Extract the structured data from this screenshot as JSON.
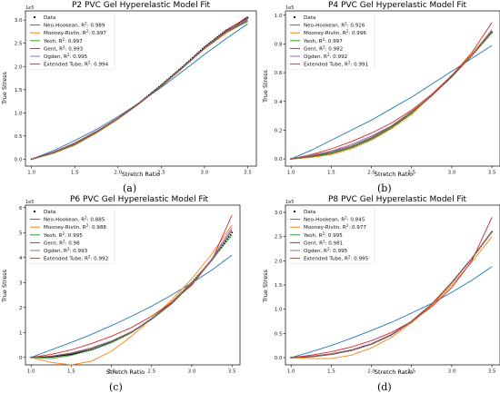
{
  "panel_labels": [
    "(a)",
    "(b)",
    "(c)",
    "(d)"
  ],
  "chart_data": [
    {
      "type": "line",
      "title": "P2 PVC Gel Hyperelastic Model Fit",
      "xlabel": "Stretch Ratio",
      "ylabel": "True Stress",
      "multiplier_label": "1e5",
      "xlim": [
        0.93,
        3.6
      ],
      "ylim": [
        -0.15,
        3.2
      ],
      "xticks": [
        "1.0",
        "1.5",
        "2.0",
        "2.5",
        "3.0",
        "3.5"
      ],
      "yticks": [
        "0.0",
        "0.5",
        "1.0",
        "1.5",
        "2.0",
        "2.5",
        "3.0"
      ],
      "legend_position": "upper-left",
      "grid": false,
      "data_series": {
        "name": "Data",
        "x": [
          1.0,
          1.25,
          1.5,
          1.75,
          2.0,
          2.25,
          2.5,
          2.75,
          3.0,
          3.25,
          3.5
        ],
        "y": [
          0,
          0.13,
          0.32,
          0.58,
          0.88,
          1.22,
          1.6,
          2.0,
          2.42,
          2.78,
          3.05
        ]
      },
      "x": [
        1.0,
        1.25,
        1.5,
        1.75,
        2.0,
        2.25,
        2.5,
        2.75,
        3.0,
        3.25,
        3.5
      ],
      "series": [
        {
          "name": "Neo-Hookean",
          "r2": "0.989",
          "color": "#1f77b4",
          "values": [
            0,
            0.18,
            0.4,
            0.64,
            0.92,
            1.22,
            1.55,
            1.9,
            2.26,
            2.6,
            2.92
          ]
        },
        {
          "name": "Mooney-Rivlin",
          "r2": "0.997",
          "color": "#ff7f0e",
          "values": [
            0,
            0.12,
            0.3,
            0.56,
            0.86,
            1.2,
            1.58,
            1.98,
            2.38,
            2.72,
            2.98
          ]
        },
        {
          "name": "Yeoh",
          "r2": "0.997",
          "color": "#2ca02c",
          "values": [
            0,
            0.13,
            0.31,
            0.57,
            0.87,
            1.21,
            1.59,
            1.99,
            2.4,
            2.74,
            2.97
          ]
        },
        {
          "name": "Gent",
          "r2": "0.993",
          "color": "#d62728",
          "values": [
            0,
            0.15,
            0.35,
            0.6,
            0.89,
            1.21,
            1.57,
            1.97,
            2.39,
            2.76,
            3.08
          ]
        },
        {
          "name": "Ogden",
          "r2": "0.995",
          "color": "#9467bd",
          "values": [
            0,
            0.14,
            0.33,
            0.58,
            0.88,
            1.21,
            1.58,
            1.98,
            2.4,
            2.75,
            3.02
          ]
        },
        {
          "name": "Extended Tube",
          "r2": "0.994",
          "color": "#8c564b",
          "values": [
            0,
            0.14,
            0.34,
            0.59,
            0.88,
            1.21,
            1.58,
            1.98,
            2.39,
            2.74,
            3.0
          ]
        }
      ]
    },
    {
      "type": "line",
      "title": "P4 PVC Gel Hyperelastic Model Fit",
      "xlabel": "Stretch Ratio",
      "ylabel": "True Stress",
      "multiplier_label": "1e5",
      "xlim": [
        0.93,
        3.6
      ],
      "ylim": [
        -0.05,
        1.03
      ],
      "xticks": [
        "1.0",
        "1.5",
        "2.0",
        "2.5",
        "3.0",
        "3.5"
      ],
      "yticks": [
        "0.0",
        "0.2",
        "0.4",
        "0.6",
        "0.8",
        "1.0"
      ],
      "legend_position": "upper-left",
      "grid": false,
      "data_series": {
        "name": "Data",
        "x": [
          1.0,
          1.25,
          1.5,
          1.75,
          2.0,
          2.25,
          2.5,
          2.75,
          3.0,
          3.25,
          3.5
        ],
        "y": [
          0,
          0.015,
          0.04,
          0.08,
          0.14,
          0.22,
          0.32,
          0.44,
          0.58,
          0.72,
          0.88
        ]
      },
      "x": [
        1.0,
        1.25,
        1.5,
        1.75,
        2.0,
        2.25,
        2.5,
        2.75,
        3.0,
        3.25,
        3.5
      ],
      "series": [
        {
          "name": "Neo-Hookean",
          "r2": "0.926",
          "color": "#1f77b4",
          "values": [
            0,
            0.06,
            0.13,
            0.2,
            0.27,
            0.35,
            0.43,
            0.52,
            0.61,
            0.7,
            0.79
          ]
        },
        {
          "name": "Mooney-Rivlin",
          "r2": "0.996",
          "color": "#ff7f0e",
          "values": [
            0,
            0.01,
            0.03,
            0.07,
            0.13,
            0.21,
            0.31,
            0.44,
            0.58,
            0.73,
            0.9
          ]
        },
        {
          "name": "Yeoh",
          "r2": "0.997",
          "color": "#2ca02c",
          "values": [
            0,
            0.015,
            0.04,
            0.08,
            0.14,
            0.22,
            0.32,
            0.44,
            0.58,
            0.72,
            0.88
          ]
        },
        {
          "name": "Gent",
          "r2": "0.982",
          "color": "#d62728",
          "values": [
            0,
            0.03,
            0.07,
            0.12,
            0.18,
            0.25,
            0.34,
            0.45,
            0.58,
            0.74,
            0.95
          ]
        },
        {
          "name": "Ogden",
          "r2": "0.992",
          "color": "#9467bd",
          "values": [
            0,
            0.025,
            0.055,
            0.1,
            0.16,
            0.23,
            0.33,
            0.44,
            0.57,
            0.72,
            0.9
          ]
        },
        {
          "name": "Extended Tube",
          "r2": "0.991",
          "color": "#8c564b",
          "values": [
            0,
            0.02,
            0.05,
            0.09,
            0.15,
            0.23,
            0.33,
            0.44,
            0.57,
            0.72,
            0.89
          ]
        }
      ]
    },
    {
      "type": "line",
      "title": "P6 PVC Gel Hyperelastic Model Fit",
      "xlabel": "Stretch Ratio",
      "ylabel": "True Stress",
      "multiplier_label": "1e5",
      "xlim": [
        0.93,
        3.6
      ],
      "ylim": [
        -0.3,
        6.1
      ],
      "xticks": [
        "1.0",
        "1.5",
        "2.0",
        "2.5",
        "3.0",
        "3.5"
      ],
      "yticks": [
        "0",
        "1",
        "2",
        "3",
        "4",
        "5",
        "6"
      ],
      "legend_position": "upper-left",
      "grid": false,
      "data_series": {
        "name": "Data",
        "x": [
          1.0,
          1.25,
          1.5,
          1.75,
          2.0,
          2.25,
          2.5,
          2.75,
          3.0,
          3.25,
          3.5
        ],
        "y": [
          0,
          0.02,
          0.12,
          0.3,
          0.6,
          1.0,
          1.55,
          2.2,
          3.0,
          3.9,
          5.0
        ]
      },
      "x": [
        1.0,
        1.25,
        1.5,
        1.75,
        2.0,
        2.25,
        2.5,
        2.75,
        3.0,
        3.25,
        3.5
      ],
      "series": [
        {
          "name": "Neo-Hookean",
          "r2": "0.885",
          "color": "#1f77b4",
          "values": [
            0,
            0.3,
            0.6,
            0.92,
            1.27,
            1.65,
            2.05,
            2.5,
            2.98,
            3.5,
            4.1
          ]
        },
        {
          "name": "Mooney-Rivlin",
          "r2": "0.988",
          "color": "#ff7f0e",
          "values": [
            0,
            -0.2,
            -0.3,
            -0.15,
            0.25,
            0.85,
            1.55,
            2.3,
            3.15,
            4.15,
            5.3
          ]
        },
        {
          "name": "Yeoh",
          "r2": "0.995",
          "color": "#2ca02c",
          "values": [
            0,
            -0.05,
            0.08,
            0.3,
            0.6,
            1.0,
            1.55,
            2.2,
            3.0,
            3.9,
            4.9
          ]
        },
        {
          "name": "Gent",
          "r2": "0.98",
          "color": "#d62728",
          "values": [
            0,
            0.12,
            0.3,
            0.55,
            0.85,
            1.2,
            1.65,
            2.2,
            2.9,
            3.9,
            5.7
          ]
        },
        {
          "name": "Ogden",
          "r2": "0.993",
          "color": "#9467bd",
          "values": [
            0,
            0.05,
            0.18,
            0.38,
            0.66,
            1.03,
            1.52,
            2.15,
            2.95,
            3.95,
            5.2
          ]
        },
        {
          "name": "Extended Tube",
          "r2": "0.992",
          "color": "#8c564b",
          "values": [
            0,
            0.04,
            0.16,
            0.36,
            0.64,
            1.02,
            1.52,
            2.15,
            2.95,
            3.9,
            5.1
          ]
        }
      ]
    },
    {
      "type": "line",
      "title": "P8 PVC Gel Hyperelastic Model Fit",
      "xlabel": "Stretch Ratio",
      "ylabel": "True Stress",
      "multiplier_label": "1e5",
      "xlim": [
        0.93,
        3.6
      ],
      "ylim": [
        -0.15,
        3.15
      ],
      "xticks": [
        "1.0",
        "1.5",
        "2.0",
        "2.5",
        "3.0",
        "3.5"
      ],
      "yticks": [
        "0.0",
        "0.5",
        "1.0",
        "1.5",
        "2.0",
        "2.5",
        "3.0"
      ],
      "legend_position": "upper-left",
      "grid": false,
      "data_series": {
        "name": "Data",
        "x": [
          1.0,
          1.25,
          1.5,
          1.75,
          2.0,
          2.25,
          2.5,
          2.75,
          3.0,
          3.25,
          3.5
        ],
        "y": [
          0,
          0.02,
          0.07,
          0.15,
          0.28,
          0.47,
          0.75,
          1.1,
          1.55,
          2.05,
          2.6
        ]
      },
      "x": [
        1.0,
        1.25,
        1.5,
        1.75,
        2.0,
        2.25,
        2.5,
        2.75,
        3.0,
        3.25,
        3.5
      ],
      "series": [
        {
          "name": "Neo-Hookean",
          "r2": "0.845",
          "color": "#1f77b4",
          "values": [
            0,
            0.12,
            0.25,
            0.4,
            0.56,
            0.73,
            0.92,
            1.12,
            1.35,
            1.6,
            1.88
          ]
        },
        {
          "name": "Mooney-Rivlin",
          "r2": "0.977",
          "color": "#ff7f0e",
          "values": [
            0,
            -0.02,
            -0.02,
            0.05,
            0.2,
            0.42,
            0.72,
            1.08,
            1.5,
            1.98,
            2.5
          ]
        },
        {
          "name": "Yeoh",
          "r2": "0.995",
          "color": "#2ca02c",
          "values": [
            0,
            0.02,
            0.07,
            0.15,
            0.28,
            0.47,
            0.75,
            1.1,
            1.55,
            2.05,
            2.6
          ]
        },
        {
          "name": "Gent",
          "r2": "0.981",
          "color": "#d62728",
          "values": [
            0,
            0.05,
            0.12,
            0.22,
            0.35,
            0.52,
            0.75,
            1.05,
            1.45,
            2.0,
            2.9
          ]
        },
        {
          "name": "Ogden",
          "r2": "0.995",
          "color": "#9467bd",
          "values": [
            0,
            0.03,
            0.08,
            0.16,
            0.29,
            0.48,
            0.75,
            1.1,
            1.55,
            2.05,
            2.62
          ]
        },
        {
          "name": "Extended Tube",
          "r2": "0.995",
          "color": "#8c564b",
          "values": [
            0,
            0.02,
            0.07,
            0.15,
            0.28,
            0.47,
            0.75,
            1.1,
            1.55,
            2.05,
            2.6
          ]
        }
      ]
    }
  ]
}
